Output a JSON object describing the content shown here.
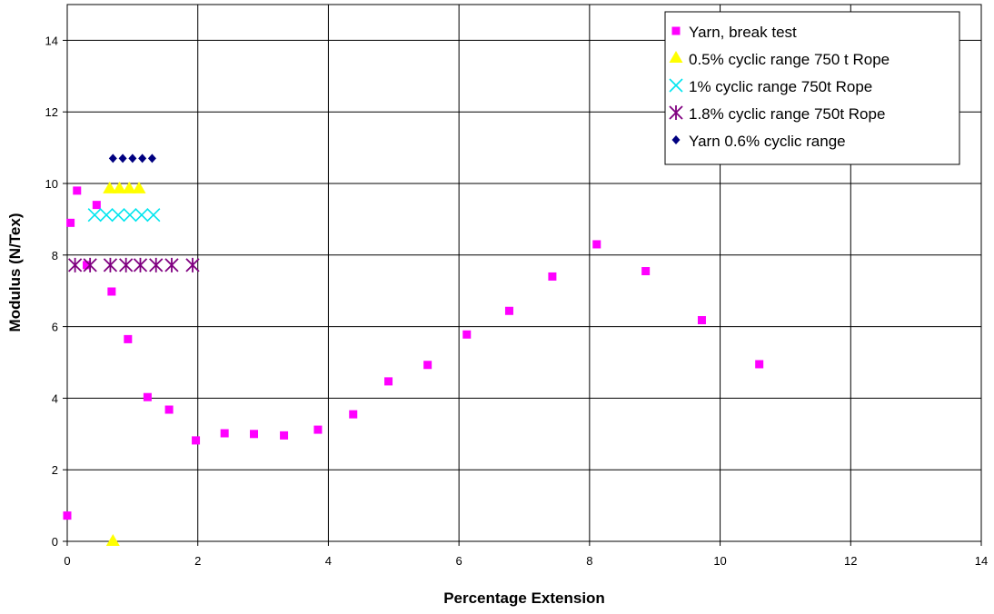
{
  "chart_data": {
    "type": "scatter",
    "title": "",
    "xlabel": "Percentage Extension",
    "ylabel": "Modulus (N/Tex)",
    "xlim": [
      0,
      14
    ],
    "ylim": [
      0,
      15
    ],
    "xticks": [
      0,
      2,
      4,
      6,
      8,
      10,
      12,
      14
    ],
    "yticks": [
      0,
      2,
      4,
      6,
      8,
      10,
      12,
      14
    ],
    "grid": true,
    "legend_position": "top-right",
    "series": [
      {
        "name": "Yarn, break test",
        "marker": "square",
        "color": "#ff00ff",
        "points": [
          [
            0.0,
            0.72
          ],
          [
            0.05,
            8.9
          ],
          [
            0.15,
            9.8
          ],
          [
            0.3,
            7.72
          ],
          [
            0.45,
            9.4
          ],
          [
            0.68,
            6.98
          ],
          [
            0.93,
            5.65
          ],
          [
            1.23,
            4.03
          ],
          [
            1.56,
            3.68
          ],
          [
            1.97,
            2.82
          ],
          [
            2.41,
            3.02
          ],
          [
            2.86,
            3.0
          ],
          [
            3.32,
            2.96
          ],
          [
            3.84,
            3.12
          ],
          [
            4.38,
            3.55
          ],
          [
            4.92,
            4.47
          ],
          [
            5.52,
            4.93
          ],
          [
            6.12,
            5.78
          ],
          [
            6.77,
            6.44
          ],
          [
            7.43,
            7.4
          ],
          [
            8.11,
            8.3
          ],
          [
            8.86,
            7.55
          ],
          [
            9.72,
            6.18
          ],
          [
            10.6,
            4.95
          ]
        ]
      },
      {
        "name": "0.5% cyclic range 750 t Rope",
        "marker": "triangle",
        "color": "#ffff00",
        "points": [
          [
            0.7,
            0.0
          ],
          [
            0.65,
            9.85
          ],
          [
            0.8,
            9.85
          ],
          [
            0.95,
            9.85
          ],
          [
            1.1,
            9.85
          ]
        ]
      },
      {
        "name": "1% cyclic range 750t Rope",
        "marker": "x",
        "color": "#00e5ee",
        "points": [
          [
            0.42,
            9.12
          ],
          [
            0.6,
            9.12
          ],
          [
            0.78,
            9.12
          ],
          [
            0.96,
            9.12
          ],
          [
            1.14,
            9.12
          ],
          [
            1.32,
            9.12
          ]
        ]
      },
      {
        "name": "1.8% cyclic range 750t Rope",
        "marker": "asterisk",
        "color": "#800080",
        "points": [
          [
            0.12,
            7.72
          ],
          [
            0.35,
            7.72
          ],
          [
            0.66,
            7.72
          ],
          [
            0.9,
            7.72
          ],
          [
            1.12,
            7.72
          ],
          [
            1.36,
            7.72
          ],
          [
            1.6,
            7.72
          ],
          [
            1.92,
            7.72
          ]
        ]
      },
      {
        "name": "Yarn 0.6% cyclic range",
        "marker": "diamond",
        "color": "#000080",
        "points": [
          [
            0.7,
            10.7
          ],
          [
            0.85,
            10.7
          ],
          [
            1.0,
            10.7
          ],
          [
            1.15,
            10.7
          ],
          [
            1.3,
            10.7
          ]
        ]
      }
    ]
  }
}
